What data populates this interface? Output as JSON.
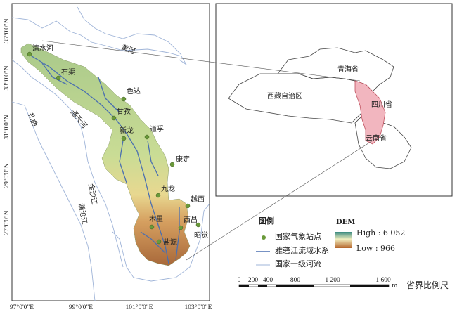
{
  "left_map": {
    "lat_ticks": [
      "35°0'0\"N",
      "33°0'0\"N",
      "31°0'0\"N",
      "29°0'0\"N",
      "27°0'0\"N"
    ],
    "lon_ticks": [
      "97°0'0\"E",
      "99°0'0\"E",
      "101°0'0\"E",
      "103°0'0\"E"
    ],
    "stations": [
      "清水河",
      "石渠",
      "色达",
      "甘孜",
      "新龙",
      "道孚",
      "康定",
      "九龙",
      "越西",
      "西昌",
      "昭觉",
      "木里",
      "盐源"
    ],
    "rivers": [
      "黄河",
      "扎曲",
      "通天河",
      "金沙江",
      "澜沧江"
    ]
  },
  "right_map": {
    "provinces": [
      "青海省",
      "西藏自治区",
      "四川省",
      "云南省"
    ]
  },
  "legend": {
    "title": "图例",
    "items": [
      "国家气象站点",
      "雅砻江流域水系",
      "国家一级河流"
    ],
    "dem_title": "DEM",
    "dem_high": "High : 6 052",
    "dem_low": "Low : 966"
  },
  "scale": {
    "ticks": [
      "0",
      "200",
      "400",
      "800",
      "1 200",
      "1 600"
    ],
    "unit": "m",
    "label": "省界比例尺"
  },
  "colors": {
    "station": "#6a9a3a",
    "basin_river": "#4a6fb0",
    "national_river": "#9fb4d8",
    "sichuan": "#f2b6bf"
  }
}
